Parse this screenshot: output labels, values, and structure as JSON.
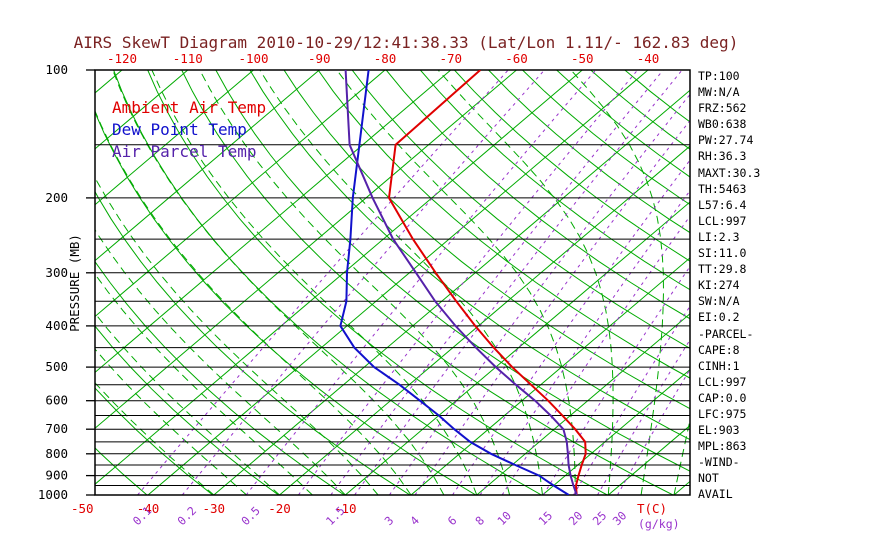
{
  "title": "AIRS SkewT Diagram 2010-10-29/12:41:38.33 (Lat/Lon 1.11/- 162.83 deg)",
  "legend": [
    {
      "label": "Ambient Air Temp",
      "color": "#e00000"
    },
    {
      "label": "Dew Point Temp",
      "color": "#1111cc"
    },
    {
      "label": "Air Parcel Temp",
      "color": "#5522aa"
    }
  ],
  "axes": {
    "pressure_label": "PRESSURE (MB)",
    "pressure_ticks": [
      100,
      200,
      300,
      400,
      500,
      600,
      700,
      800,
      900,
      1000
    ],
    "top_temp_ticks": [
      -120,
      -110,
      -100,
      -90,
      -80,
      -70,
      -60,
      -50,
      -40
    ],
    "bottom_temp_ticks": [
      -50,
      -40,
      -30,
      -20,
      -10
    ],
    "temp_unit": "T(C)",
    "mixing_ratio_ticks": [
      0.1,
      0.2,
      0.5,
      1.5,
      3,
      4,
      6,
      8,
      10,
      15,
      20,
      25,
      30
    ],
    "mixing_ratio_unit": "(g/kg)"
  },
  "stats": [
    "TP:100",
    "MW:N/A",
    "FRZ:562",
    "WB0:638",
    "PW:27.74",
    "RH:36.3",
    "MAXT:30.3",
    "TH:5463",
    "L57:6.4",
    "LCL:997",
    "LI:2.3",
    "SI:11.0",
    "TT:29.8",
    "KI:274",
    "SW:N/A",
    "EI:0.2",
    "-PARCEL-",
    "CAPE:8",
    "CINH:1",
    "LCL:997",
    "CAP:0.0",
    "LFC:975",
    "EL:903",
    "MPL:863",
    "-WIND-",
    "NOT",
    "AVAIL"
  ],
  "chart_data": {
    "type": "line",
    "title": "AIRS SkewT Diagram 2010-10-29/12:41:38.33 (Lat/Lon 1.11/- 162.83 deg)",
    "xlabel": "T(C)",
    "ylabel": "PRESSURE (MB)",
    "pressure_range": [
      100,
      1000
    ],
    "log_pressure": true,
    "surface_temp_range": [
      -50,
      40
    ],
    "points_format": "[pressure_mb, temperature_C]",
    "series": [
      {
        "name": "Ambient Air Temp",
        "color": "#e00000",
        "points": [
          [
            1000,
            25.2
          ],
          [
            950,
            23.4
          ],
          [
            925,
            22.7
          ],
          [
            900,
            22.0
          ],
          [
            850,
            20.6
          ],
          [
            800,
            19.2
          ],
          [
            750,
            17.0
          ],
          [
            700,
            13.2
          ],
          [
            650,
            8.8
          ],
          [
            600,
            4.0
          ],
          [
            550,
            -1.5
          ],
          [
            500,
            -7.5
          ],
          [
            450,
            -13.8
          ],
          [
            400,
            -20.5
          ],
          [
            350,
            -27.8
          ],
          [
            300,
            -36.0
          ],
          [
            250,
            -45.5
          ],
          [
            200,
            -56.5
          ],
          [
            150,
            -65.0
          ],
          [
            100,
            -65.5
          ]
        ]
      },
      {
        "name": "Dew Point Temp",
        "color": "#1111cc",
        "points": [
          [
            1000,
            24.0
          ],
          [
            950,
            20.0
          ],
          [
            925,
            18.0
          ],
          [
            900,
            16.0
          ],
          [
            850,
            10.5
          ],
          [
            800,
            4.8
          ],
          [
            750,
            -0.5
          ],
          [
            700,
            -5.2
          ],
          [
            650,
            -10.0
          ],
          [
            600,
            -15.5
          ],
          [
            550,
            -21.5
          ],
          [
            500,
            -28.5
          ],
          [
            450,
            -35.0
          ],
          [
            400,
            -41.0
          ],
          [
            350,
            -44.5
          ],
          [
            300,
            -49.5
          ],
          [
            250,
            -55.0
          ],
          [
            200,
            -62.0
          ],
          [
            150,
            -70.5
          ],
          [
            100,
            -82.5
          ]
        ]
      },
      {
        "name": "Air Parcel Temp",
        "color": "#5522aa",
        "points": [
          [
            1000,
            25.2
          ],
          [
            950,
            23.0
          ],
          [
            900,
            20.8
          ],
          [
            850,
            18.6
          ],
          [
            800,
            16.5
          ],
          [
            750,
            14.2
          ],
          [
            700,
            11.4
          ],
          [
            650,
            7.0
          ],
          [
            600,
            2.0
          ],
          [
            550,
            -3.8
          ],
          [
            500,
            -10.0
          ],
          [
            450,
            -16.5
          ],
          [
            400,
            -23.5
          ],
          [
            350,
            -31.0
          ],
          [
            300,
            -39.0
          ],
          [
            250,
            -48.5
          ],
          [
            200,
            -59.0
          ],
          [
            150,
            -72.0
          ],
          [
            100,
            -86.0
          ]
        ]
      }
    ],
    "background": {
      "isotherms_C": {
        "min": -130,
        "max": 40,
        "step": 10
      },
      "dry_adiabats_K": {
        "min": 233,
        "max": 443,
        "step": 10
      },
      "moist_adiabats_C_at_1000mb": {
        "min": -30,
        "max": 45,
        "step": 5
      },
      "mixing_ratio_lines_gkg": [
        0.1,
        0.2,
        0.5,
        1,
        1.5,
        2,
        3,
        4,
        6,
        8,
        10,
        15,
        20,
        25,
        30
      ],
      "pressure_lines_mb": {
        "min": 100,
        "max": 1000,
        "step": 50
      }
    },
    "colors": {
      "isotherm": "#00aa00",
      "dry_adiabat": "#00aa00",
      "moist_adiabat": "#00aa00",
      "mixing_ratio": "#9933cc",
      "pressure_line": "#000000",
      "frame": "#000000",
      "temp_axis": "#e00000"
    }
  }
}
